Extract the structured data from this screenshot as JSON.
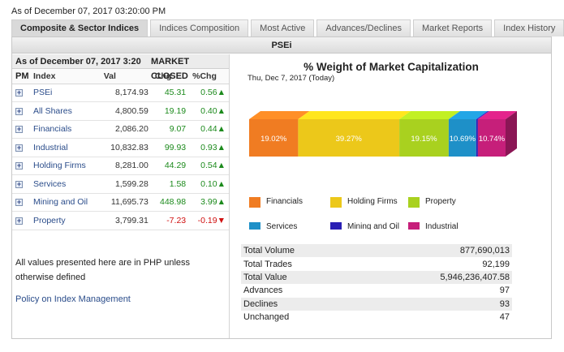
{
  "asof_top": "As of December 07, 2017 03:20:00 PM",
  "tabs": [
    {
      "label": "Composite & Sector Indices",
      "active": true
    },
    {
      "label": "Indices Composition",
      "active": false
    },
    {
      "label": "Most Active",
      "active": false
    },
    {
      "label": "Advances/Declines",
      "active": false
    },
    {
      "label": "Market Reports",
      "active": false
    },
    {
      "label": "Index History",
      "active": false
    }
  ],
  "panel_title": "PSEi",
  "status": {
    "asof": "As of December 07, 2017 3:20 PM",
    "market": "MARKET CLOSED"
  },
  "table": {
    "headers": [
      "Index",
      "Val",
      "Chg",
      "%Chg"
    ],
    "rows": [
      {
        "name": "PSEi",
        "val": "8,174.93",
        "chg": "45.31",
        "pct": "0.56",
        "dir": "up"
      },
      {
        "name": "All Shares",
        "val": "4,800.59",
        "chg": "19.19",
        "pct": "0.40",
        "dir": "up"
      },
      {
        "name": "Financials",
        "val": "2,086.20",
        "chg": "9.07",
        "pct": "0.44",
        "dir": "up"
      },
      {
        "name": "Industrial",
        "val": "10,832.83",
        "chg": "99.93",
        "pct": "0.93",
        "dir": "up"
      },
      {
        "name": "Holding Firms",
        "val": "8,281.00",
        "chg": "44.29",
        "pct": "0.54",
        "dir": "up"
      },
      {
        "name": "Services",
        "val": "1,599.28",
        "chg": "1.58",
        "pct": "0.10",
        "dir": "up"
      },
      {
        "name": "Mining and Oil",
        "val": "11,695.73",
        "chg": "448.98",
        "pct": "3.99",
        "dir": "up"
      },
      {
        "name": "Property",
        "val": "3,799.31",
        "chg": "-7.23",
        "pct": "-0.19",
        "dir": "down"
      }
    ]
  },
  "note": "All values presented here are in PHP unless otherwise defined",
  "policy_link": "Policy on Index Management",
  "chart_data": {
    "type": "bar",
    "title": "% Weight of Market Capitalization",
    "subtitle": "Thu, Dec 7, 2017 (Today)",
    "series": [
      {
        "name": "Financials",
        "value": 19.02,
        "label": "19.02%",
        "color": "#f07c22"
      },
      {
        "name": "Holding Firms",
        "value": 39.27,
        "label": "39.27%",
        "color": "#ecc81a"
      },
      {
        "name": "Property",
        "value": 19.15,
        "label": "19.15%",
        "color": "#a9d11f"
      },
      {
        "name": "Services",
        "value": 10.69,
        "label": "10.69%",
        "color": "#1e90c8"
      },
      {
        "name": "Mining and Oil",
        "value": 0.64,
        "label": "",
        "color": "#2a1fb4"
      },
      {
        "name": "Industrial",
        "value": 10.74,
        "label": "10.74%",
        "color": "#c61f7a"
      }
    ],
    "legend_order": [
      "Financials",
      "Holding Firms",
      "Property",
      "Services",
      "Mining and Oil",
      "Industrial"
    ]
  },
  "stats": [
    {
      "label": "Total Volume",
      "value": "877,690,013"
    },
    {
      "label": "Total Trades",
      "value": "92,199"
    },
    {
      "label": "Total Value",
      "value": "5,946,236,407.58"
    },
    {
      "label": "Advances",
      "value": "97"
    },
    {
      "label": "Declines",
      "value": "93"
    },
    {
      "label": "Unchanged",
      "value": "47"
    }
  ],
  "icons": {
    "expand": "plus-icon",
    "up": "up-arrow-icon",
    "down": "down-arrow-icon"
  }
}
